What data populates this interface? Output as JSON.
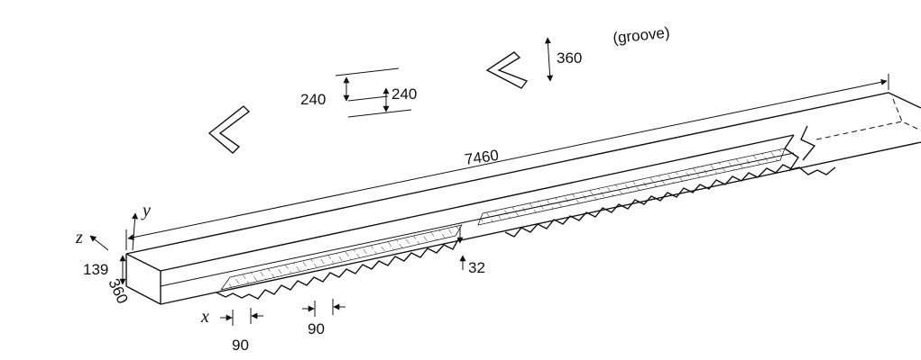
{
  "dimensions": {
    "groove_depth": "360",
    "groove_label": "(groove)",
    "groove_width_left": "240",
    "groove_width_right": "240",
    "channel_length": "7460",
    "rib_height": "32",
    "channel_height": "139",
    "channel_width": "360",
    "rib_pitch_left": "90",
    "rib_pitch_right": "90"
  },
  "axes": {
    "x": "x",
    "y": "y",
    "z": "z"
  }
}
